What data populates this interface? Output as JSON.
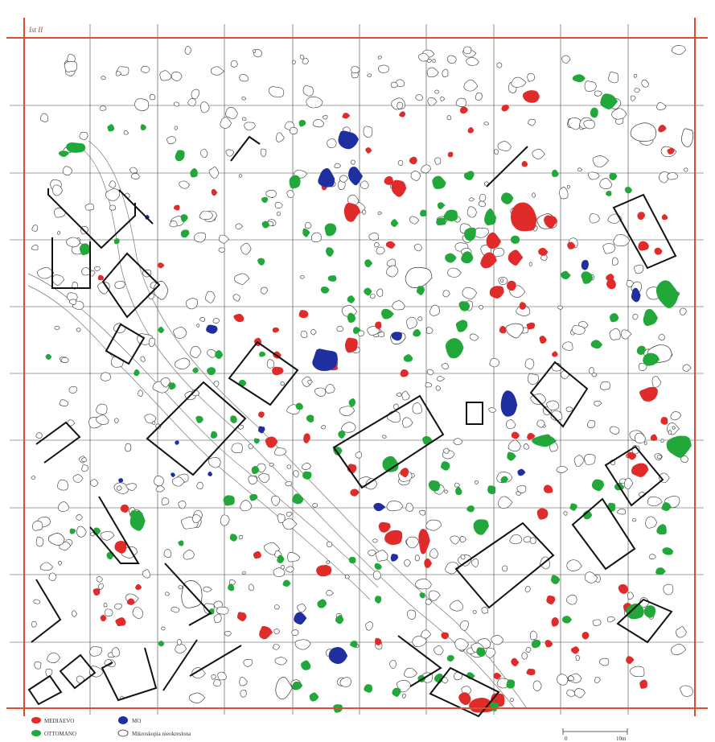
{
  "map": {
    "frame_label": "Ist II",
    "colors": {
      "frame": "#d94f30",
      "grid": "#444444",
      "red_feature": "#e02b2b",
      "green_feature": "#22a83a",
      "blue_feature": "#1f2fa0",
      "outline_feature": "#333333",
      "trench": "#111111"
    },
    "legend": {
      "items": [
        {
          "key": "red",
          "label": "MEDIAEVO",
          "color": "#e02b2b"
        },
        {
          "key": "green",
          "label": "OTTOMANO",
          "color": "#22a83a"
        },
        {
          "key": "blue",
          "label": "MO",
          "color": "#1f2fa0"
        },
        {
          "key": "outline",
          "label": "Mikroskopia nieokreslona",
          "color": "#ffffff"
        }
      ]
    },
    "scale": {
      "start": "0",
      "end": "10m"
    }
  }
}
